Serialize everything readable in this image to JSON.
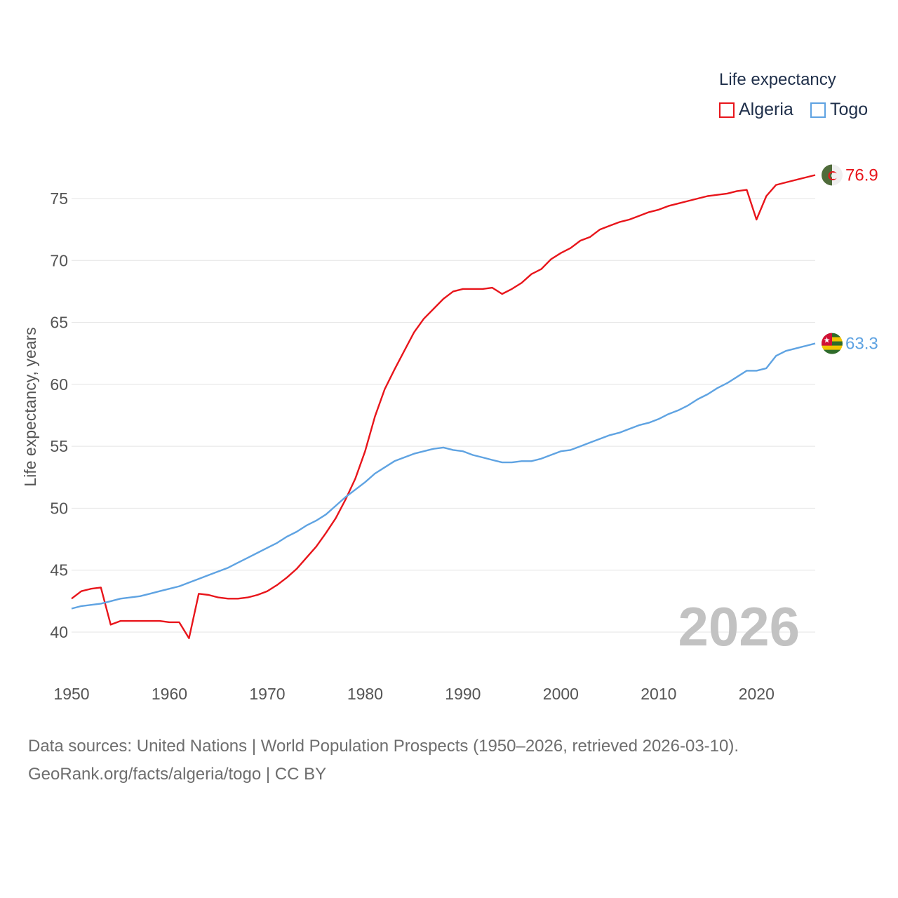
{
  "legend": {
    "title": "Life expectancy",
    "items": [
      {
        "name": "Algeria",
        "color": "#e8151b"
      },
      {
        "name": "Togo",
        "color": "#5fa3e2"
      }
    ]
  },
  "footer": {
    "line1": "Data sources: United Nations | World Population Prospects (1950–2026, retrieved 2026-03-10).",
    "line2": "GeoRank.org/facts/algeria/togo | CC BY"
  },
  "chart_data": {
    "type": "line",
    "ylabel": "Life expectancy, years",
    "xlabel": "",
    "xlim": [
      1950,
      2026
    ],
    "ylim": [
      37,
      79
    ],
    "xticks": [
      1950,
      1960,
      1970,
      1980,
      1990,
      2000,
      2010,
      2020
    ],
    "yticks": [
      40,
      45,
      50,
      55,
      60,
      65,
      70,
      75
    ],
    "year_label": "2026",
    "series": [
      {
        "name": "Algeria",
        "color": "#e8151b",
        "end_label": "76.9",
        "flag": "algeria-flag-icon",
        "x": [
          1950,
          1951,
          1952,
          1953,
          1954,
          1955,
          1956,
          1957,
          1958,
          1959,
          1960,
          1961,
          1962,
          1963,
          1964,
          1965,
          1966,
          1967,
          1968,
          1969,
          1970,
          1971,
          1972,
          1973,
          1974,
          1975,
          1976,
          1977,
          1978,
          1979,
          1980,
          1981,
          1982,
          1983,
          1984,
          1985,
          1986,
          1987,
          1988,
          1989,
          1990,
          1991,
          1992,
          1993,
          1994,
          1995,
          1996,
          1997,
          1998,
          1999,
          2000,
          2001,
          2002,
          2003,
          2004,
          2005,
          2006,
          2007,
          2008,
          2009,
          2010,
          2011,
          2012,
          2013,
          2014,
          2015,
          2016,
          2017,
          2018,
          2019,
          2020,
          2021,
          2022,
          2023,
          2024,
          2025,
          2026
        ],
        "values": [
          42.7,
          43.3,
          43.5,
          43.6,
          40.6,
          40.9,
          40.9,
          40.9,
          40.9,
          40.9,
          40.8,
          40.8,
          39.5,
          43.1,
          43.0,
          42.8,
          42.7,
          42.7,
          42.8,
          43.0,
          43.3,
          43.8,
          44.4,
          45.1,
          46.0,
          46.9,
          48.0,
          49.2,
          50.7,
          52.4,
          54.6,
          57.4,
          59.6,
          61.2,
          62.7,
          64.2,
          65.3,
          66.1,
          66.9,
          67.5,
          67.7,
          67.7,
          67.7,
          67.8,
          67.3,
          67.7,
          68.2,
          68.9,
          69.3,
          70.1,
          70.6,
          71.0,
          71.6,
          71.9,
          72.5,
          72.8,
          73.1,
          73.3,
          73.6,
          73.9,
          74.1,
          74.4,
          74.6,
          74.8,
          75.0,
          75.2,
          75.3,
          75.4,
          75.6,
          75.7,
          73.3,
          75.2,
          76.1,
          76.3,
          76.5,
          76.7,
          76.9
        ]
      },
      {
        "name": "Togo",
        "color": "#5fa3e2",
        "end_label": "63.3",
        "flag": "togo-flag-icon",
        "x": [
          1950,
          1951,
          1952,
          1953,
          1954,
          1955,
          1956,
          1957,
          1958,
          1959,
          1960,
          1961,
          1962,
          1963,
          1964,
          1965,
          1966,
          1967,
          1968,
          1969,
          1970,
          1971,
          1972,
          1973,
          1974,
          1975,
          1976,
          1977,
          1978,
          1979,
          1980,
          1981,
          1982,
          1983,
          1984,
          1985,
          1986,
          1987,
          1988,
          1989,
          1990,
          1991,
          1992,
          1993,
          1994,
          1995,
          1996,
          1997,
          1998,
          1999,
          2000,
          2001,
          2002,
          2003,
          2004,
          2005,
          2006,
          2007,
          2008,
          2009,
          2010,
          2011,
          2012,
          2013,
          2014,
          2015,
          2016,
          2017,
          2018,
          2019,
          2020,
          2021,
          2022,
          2023,
          2024,
          2025,
          2026
        ],
        "values": [
          41.9,
          42.1,
          42.2,
          42.3,
          42.5,
          42.7,
          42.8,
          42.9,
          43.1,
          43.3,
          43.5,
          43.7,
          44.0,
          44.3,
          44.6,
          44.9,
          45.2,
          45.6,
          46.0,
          46.4,
          46.8,
          47.2,
          47.7,
          48.1,
          48.6,
          49.0,
          49.5,
          50.2,
          50.9,
          51.5,
          52.1,
          52.8,
          53.3,
          53.8,
          54.1,
          54.4,
          54.6,
          54.8,
          54.9,
          54.7,
          54.6,
          54.3,
          54.1,
          53.9,
          53.7,
          53.7,
          53.8,
          53.8,
          54.0,
          54.3,
          54.6,
          54.7,
          55.0,
          55.3,
          55.6,
          55.9,
          56.1,
          56.4,
          56.7,
          56.9,
          57.2,
          57.6,
          57.9,
          58.3,
          58.8,
          59.2,
          59.7,
          60.1,
          60.6,
          61.1,
          61.1,
          61.3,
          62.3,
          62.7,
          62.9,
          63.1,
          63.3
        ]
      }
    ]
  }
}
